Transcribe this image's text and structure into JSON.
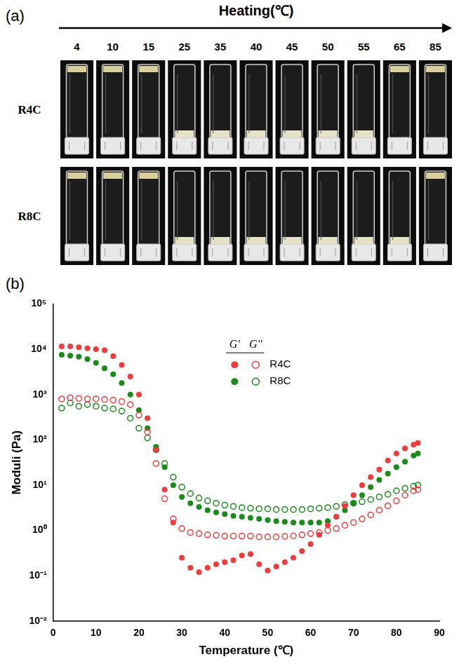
{
  "panel_a": {
    "label": "(a)",
    "header": "Heating(℃)",
    "temperatures": [
      4,
      10,
      15,
      25,
      35,
      40,
      45,
      50,
      55,
      65,
      85
    ],
    "rows": [
      {
        "label": "R4C",
        "sample_position": [
          "top",
          "top",
          "top",
          "bottom",
          "bottom",
          "bottom",
          "bottom",
          "bottom",
          "bottom",
          "top",
          "top"
        ]
      },
      {
        "label": "R8C",
        "sample_position": [
          "top",
          "top",
          "top",
          "bottom",
          "bottom",
          "bottom",
          "bottom",
          "bottom",
          "bottom",
          "bottom",
          "top"
        ]
      }
    ]
  },
  "chart_data": {
    "label": "(b)",
    "type": "scatter",
    "x_label": "Temperature (℃)",
    "y_label": "Moduli (Pa)",
    "x": [
      2,
      4,
      6,
      8,
      10,
      12,
      14,
      16,
      18,
      20,
      22,
      24,
      26,
      28,
      30,
      32,
      34,
      36,
      38,
      40,
      42,
      44,
      46,
      48,
      50,
      52,
      54,
      56,
      58,
      60,
      62,
      64,
      66,
      68,
      70,
      72,
      74,
      76,
      78,
      80,
      82,
      84,
      85
    ],
    "xlim": [
      0,
      90
    ],
    "xticks": [
      0,
      10,
      20,
      30,
      40,
      50,
      60,
      70,
      80,
      90
    ],
    "ylim": [
      0.01,
      100000
    ],
    "yticks": [
      {
        "value": 0.01,
        "label": "10⁻²"
      },
      {
        "value": 0.1,
        "label": "10⁻¹"
      },
      {
        "value": 1,
        "label": "10⁰"
      },
      {
        "value": 10,
        "label": "10¹"
      },
      {
        "value": 100,
        "label": "10²"
      },
      {
        "value": 1000,
        "label": "10³"
      },
      {
        "value": 10000,
        "label": "10⁴"
      },
      {
        "value": 100000,
        "label": "10⁵"
      }
    ],
    "log": "y",
    "grid": false,
    "legend": "upper center",
    "series": [
      {
        "name": "R4C",
        "modulus": "G'",
        "color": "#f03c3c",
        "marker": "filled_circle",
        "values": [
          11500,
          11500,
          11000,
          10500,
          10000,
          9500,
          7000,
          4500,
          2500,
          1000,
          300,
          60,
          8,
          1.5,
          0.25,
          0.15,
          0.12,
          0.15,
          0.18,
          0.2,
          0.22,
          0.28,
          0.3,
          0.18,
          0.13,
          0.16,
          0.2,
          0.25,
          0.35,
          0.5,
          0.8,
          1.3,
          2,
          3.5,
          6,
          10,
          15,
          22,
          35,
          50,
          65,
          78,
          85
        ]
      },
      {
        "name": "R4C",
        "modulus": "G''",
        "color": "#f03c3c",
        "marker": "open_circle",
        "values": [
          800,
          850,
          820,
          800,
          800,
          780,
          750,
          700,
          600,
          350,
          150,
          30,
          5,
          1.8,
          1.1,
          0.9,
          0.85,
          0.8,
          0.78,
          0.75,
          0.75,
          0.75,
          0.75,
          0.72,
          0.72,
          0.72,
          0.74,
          0.76,
          0.8,
          0.85,
          0.9,
          1.0,
          1.1,
          1.3,
          1.5,
          1.8,
          2.2,
          2.8,
          3.5,
          4.5,
          6,
          7.5,
          8
        ]
      },
      {
        "name": "R8C",
        "modulus": "G'",
        "color": "#1a8a1a",
        "marker": "filled_circle",
        "values": [
          7500,
          7200,
          6800,
          6000,
          5000,
          3800,
          2800,
          1800,
          1000,
          450,
          180,
          70,
          25,
          10,
          5.5,
          4,
          3.3,
          2.8,
          2.5,
          2.3,
          2.1,
          2.0,
          1.9,
          1.8,
          1.7,
          1.6,
          1.55,
          1.5,
          1.5,
          1.5,
          1.5,
          1.6,
          2,
          2.8,
          4,
          6,
          9,
          13,
          18,
          25,
          33,
          45,
          50
        ]
      },
      {
        "name": "R8C",
        "modulus": "G''",
        "color": "#1a8a1a",
        "marker": "open_circle",
        "values": [
          500,
          650,
          550,
          600,
          550,
          500,
          480,
          430,
          300,
          180,
          110,
          60,
          30,
          15,
          9,
          6.5,
          5.2,
          4.5,
          4,
          3.6,
          3.4,
          3.2,
          3.1,
          3.0,
          3.0,
          2.9,
          2.9,
          2.9,
          2.9,
          3.0,
          3.1,
          3.2,
          3.4,
          3.7,
          4,
          4.3,
          4.8,
          5.5,
          6.3,
          7.5,
          8.5,
          9.5,
          10
        ]
      }
    ]
  }
}
